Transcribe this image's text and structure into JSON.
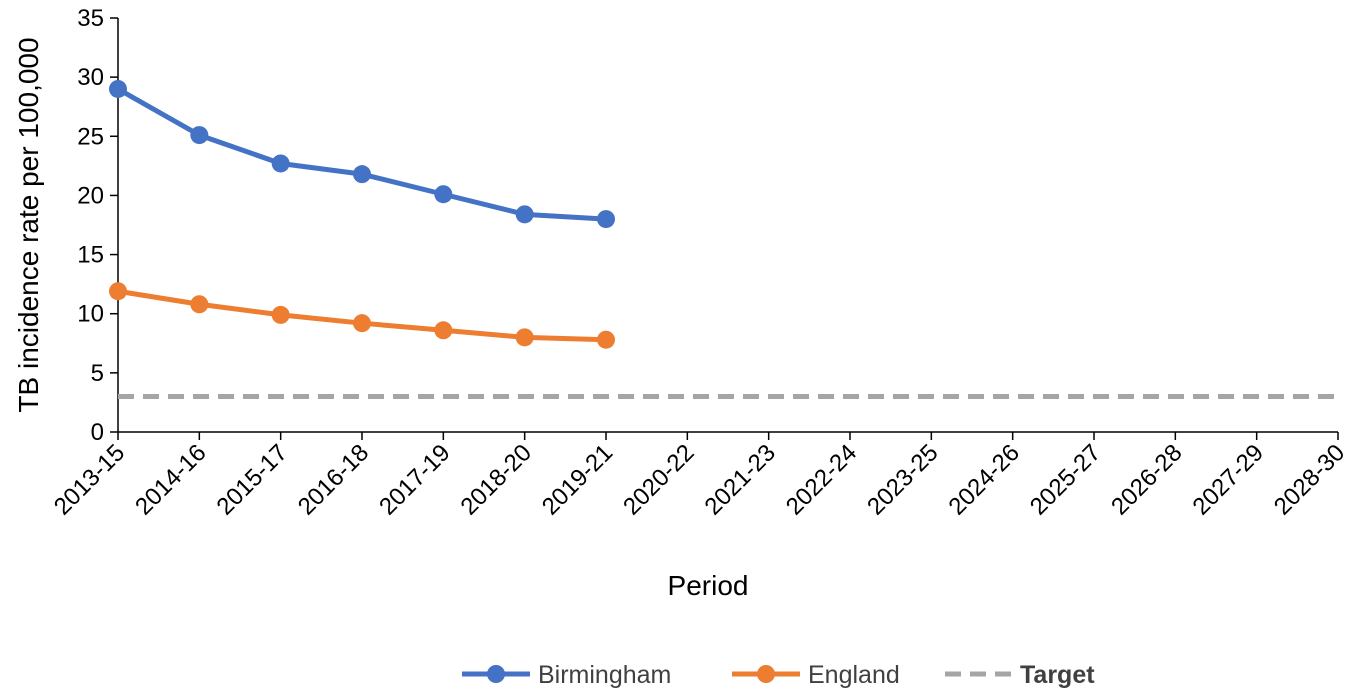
{
  "chart_data": {
    "type": "line",
    "title": "",
    "xlabel": "Period",
    "ylabel": "TB incidence rate per 100,000",
    "categories": [
      "2013-15",
      "2014-16",
      "2015-17",
      "2016-18",
      "2017-19",
      "2018-20",
      "2019-21",
      "2020-22",
      "2021-23",
      "2022-24",
      "2023-25",
      "2024-26",
      "2025-27",
      "2026-28",
      "2027-29",
      "2028-30"
    ],
    "ylim": [
      0,
      35
    ],
    "yticks": [
      0,
      5,
      10,
      15,
      20,
      25,
      30,
      35
    ],
    "grid": false,
    "legend_position": "bottom",
    "series": [
      {
        "name": "Birmingham",
        "color": "#4472C4",
        "style": "solid-markers",
        "values": [
          29.0,
          25.1,
          22.7,
          21.8,
          20.1,
          18.4,
          18.0,
          null,
          null,
          null,
          null,
          null,
          null,
          null,
          null,
          null
        ]
      },
      {
        "name": "England",
        "color": "#ED7D31",
        "style": "solid-markers",
        "values": [
          11.9,
          10.8,
          9.9,
          9.2,
          8.6,
          8.0,
          7.8,
          null,
          null,
          null,
          null,
          null,
          null,
          null,
          null,
          null
        ]
      },
      {
        "name": "Target",
        "color": "#A5A5A5",
        "style": "dashed",
        "values": [
          3.0,
          3.0,
          3.0,
          3.0,
          3.0,
          3.0,
          3.0,
          3.0,
          3.0,
          3.0,
          3.0,
          3.0,
          3.0,
          3.0,
          3.0,
          3.0
        ]
      }
    ]
  }
}
